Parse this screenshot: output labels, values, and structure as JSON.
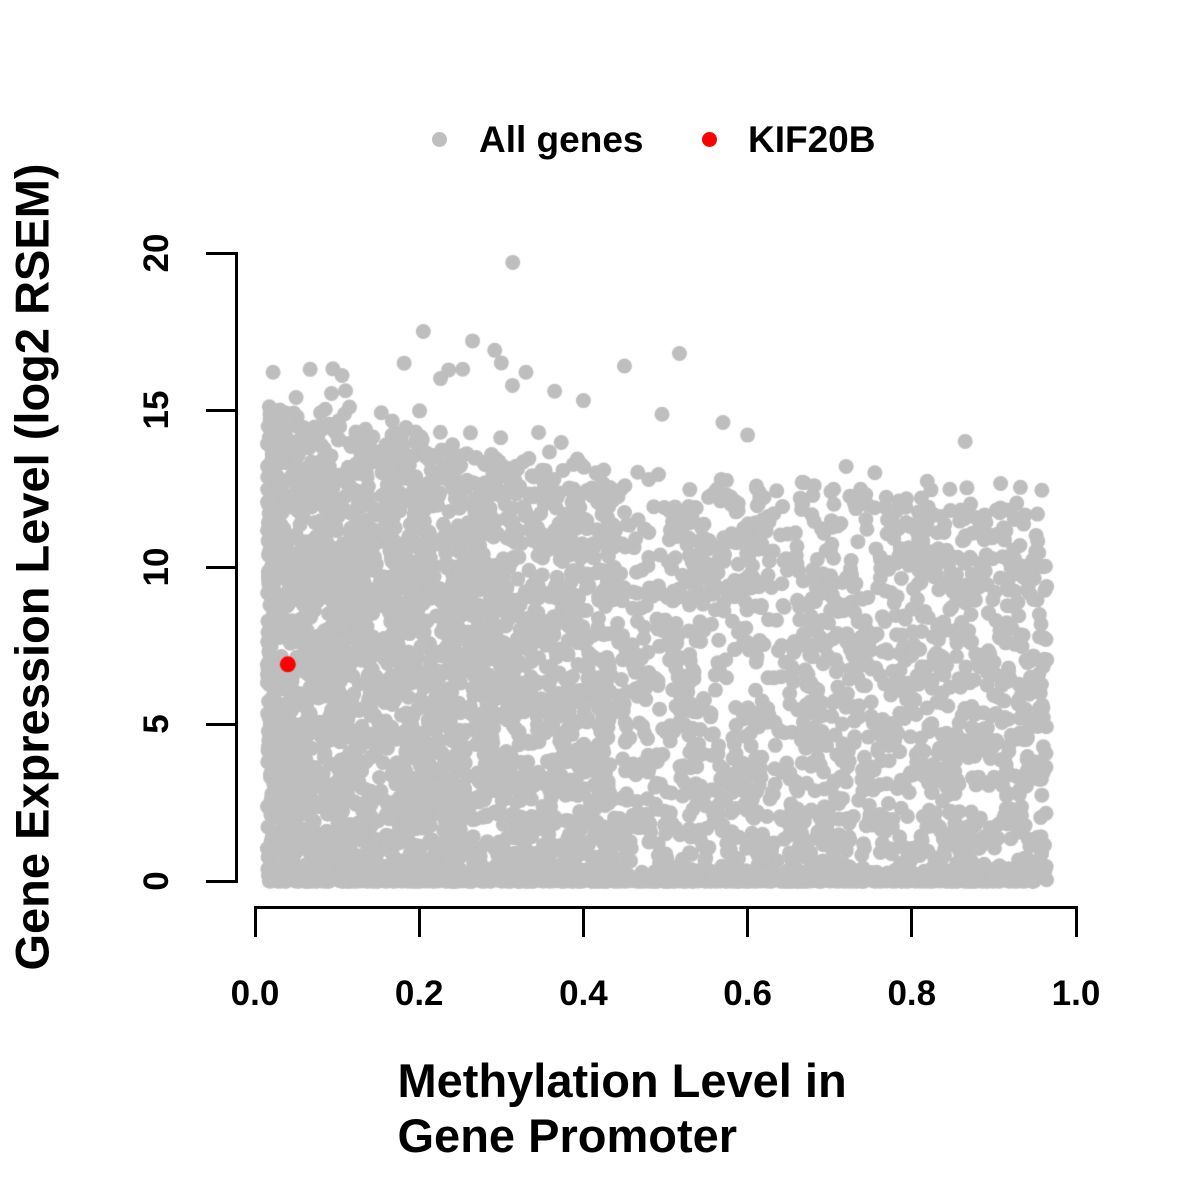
{
  "figure": {
    "background": "#FFFFFF",
    "text_color": "#000000",
    "axis_color": "#000000"
  },
  "legend": {
    "position": "top-center",
    "items": [
      {
        "label": "All genes",
        "color": "#BEBEBE",
        "marker": "filled-circle"
      },
      {
        "label": "KIF20B",
        "color": "#FF0000",
        "marker": "filled-circle"
      }
    ]
  },
  "chart_data": {
    "type": "scatter",
    "title": "",
    "xlabel": "Methylation Level in Gene Promoter",
    "ylabel": "Gene Expression Level (log2 RSEM)",
    "xlim": [
      0,
      1
    ],
    "ylim": [
      0,
      20
    ],
    "x_ticks": [
      0.0,
      0.2,
      0.4,
      0.6,
      0.8,
      1.0
    ],
    "x_tick_labels": [
      "0.0",
      "0.2",
      "0.4",
      "0.6",
      "0.8",
      "1.0"
    ],
    "y_ticks": [
      0,
      5,
      10,
      15,
      20
    ],
    "y_tick_labels": [
      "0",
      "5",
      "10",
      "15",
      "20"
    ],
    "grid": false,
    "legend_position": "top-center",
    "series": [
      {
        "name": "All genes",
        "color": "#BEBEBE",
        "marker": "filled-circle",
        "point_radius_px": 7.5,
        "n_points_approx": 5150,
        "x_range": [
          0.015,
          0.965
        ],
        "y_range": [
          0,
          19.7
        ],
        "description": "Dense solid cloud for methylation 0.02-0.43 spanning expression 0 to ~15 (upper envelope falling from ~15 to ~13); sparser cloud for methylation 0.43-0.96 with envelope ~13 falling to ~12; heavy band of zero-expression genes along the bottom for all methylation levels; scattered high-expression outliers up to 19.7.",
        "cloud_generator": {
          "seed": 42,
          "left_cloud": {
            "n": 2800,
            "x_min": 0.015,
            "x_span": 0.418,
            "x_power": 1.25,
            "env_base": 15.0,
            "env_slope": -4.8,
            "env_jitter": 1.2,
            "y_power": 1.0
          },
          "right_cloud": {
            "n": 1650,
            "x_min": 0.42,
            "x_span": 0.545,
            "env_base": 12.8,
            "env_slope": -1.4,
            "env_jitter": 1.4,
            "y_power": 1.15
          },
          "zero_band": {
            "n": 700,
            "x_min": 0.015,
            "x_span": 0.94,
            "x_power": 0.95,
            "zero_fraction": 0.6,
            "y_max": 0.4
          },
          "sprinkle": {
            "n": 18,
            "x_min": 0.05,
            "x_span": 0.5,
            "y_extra_max": 2.2
          }
        },
        "notable_points": [
          [
            0.314,
            19.7
          ],
          [
            0.205,
            17.5
          ],
          [
            0.265,
            17.2
          ],
          [
            0.292,
            16.9
          ],
          [
            0.3,
            16.5
          ],
          [
            0.253,
            16.3
          ],
          [
            0.33,
            16.2
          ],
          [
            0.226,
            16.0
          ],
          [
            0.106,
            16.1
          ],
          [
            0.022,
            16.2
          ],
          [
            0.05,
            15.4
          ],
          [
            0.365,
            15.6
          ],
          [
            0.4,
            15.3
          ],
          [
            0.45,
            16.4
          ],
          [
            0.517,
            16.8
          ],
          [
            0.57,
            14.6
          ],
          [
            0.6,
            14.2
          ],
          [
            0.72,
            13.2
          ],
          [
            0.755,
            13.0
          ],
          [
            0.865,
            14.0
          ]
        ]
      },
      {
        "name": "KIF20B",
        "color": "#FF0000",
        "marker": "filled-circle",
        "point_radius_px": 8,
        "points": [
          [
            0.04,
            6.9
          ]
        ]
      }
    ]
  }
}
